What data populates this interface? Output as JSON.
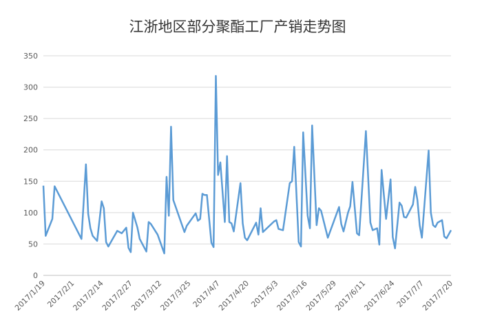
{
  "chart_data": {
    "type": "line",
    "title": "江浙地区部分聚酯工厂产销走势图",
    "color": "#5b9bd5",
    "grid": true,
    "ylim": [
      0,
      350
    ],
    "yticks": [
      0,
      50,
      100,
      150,
      200,
      250,
      300,
      350
    ],
    "xlim": [
      "2017/1/19",
      "2017/7/20"
    ],
    "xticks": [
      "2017/1/19",
      "2017/2/1",
      "2017/2/14",
      "2017/2/27",
      "2017/3/12",
      "2017/3/25",
      "2017/4/7",
      "2017/4/20",
      "2017/5/3",
      "2017/5/16",
      "2017/5/29",
      "2017/6/11",
      "2017/6/24",
      "2017/7/7",
      "2017/7/20"
    ],
    "x": [
      "2017/1/19",
      "2017/1/20",
      "2017/1/23",
      "2017/1/24",
      "2017/2/5",
      "2017/2/7",
      "2017/2/8",
      "2017/2/9",
      "2017/2/10",
      "2017/2/12",
      "2017/2/14",
      "2017/2/15",
      "2017/2/16",
      "2017/2/17",
      "2017/2/21",
      "2017/2/23",
      "2017/2/25",
      "2017/2/26",
      "2017/2/27",
      "2017/2/28",
      "2017/3/2",
      "2017/3/3",
      "2017/3/6",
      "2017/3/7",
      "2017/3/8",
      "2017/3/11",
      "2017/3/14",
      "2017/3/15",
      "2017/3/16",
      "2017/3/17",
      "2017/3/18",
      "2017/3/23",
      "2017/3/24",
      "2017/3/28",
      "2017/3/29",
      "2017/3/30",
      "2017/3/31",
      "2017/4/1",
      "2017/4/2",
      "2017/4/4",
      "2017/4/5",
      "2017/4/6",
      "2017/4/7",
      "2017/4/8",
      "2017/4/10",
      "2017/4/11",
      "2017/4/12",
      "2017/4/13",
      "2017/4/14",
      "2017/4/17",
      "2017/4/18",
      "2017/4/19",
      "2017/4/20",
      "2017/4/24",
      "2017/4/25",
      "2017/4/26",
      "2017/4/27",
      "2017/5/2",
      "2017/5/3",
      "2017/5/4",
      "2017/5/6",
      "2017/5/9",
      "2017/5/10",
      "2017/5/11",
      "2017/5/13",
      "2017/5/14",
      "2017/5/15",
      "2017/5/17",
      "2017/5/18",
      "2017/5/19",
      "2017/5/21",
      "2017/5/22",
      "2017/5/23",
      "2017/5/26",
      "2017/5/31",
      "2017/6/1",
      "2017/6/2",
      "2017/6/4",
      "2017/6/5",
      "2017/6/6",
      "2017/6/8",
      "2017/6/9",
      "2017/6/12",
      "2017/6/14",
      "2017/6/15",
      "2017/6/17",
      "2017/6/18",
      "2017/6/19",
      "2017/6/21",
      "2017/6/23",
      "2017/6/24",
      "2017/6/25",
      "2017/6/27",
      "2017/6/28",
      "2017/6/29",
      "2017/6/30",
      "2017/7/3",
      "2017/7/4",
      "2017/7/5",
      "2017/7/6",
      "2017/7/7",
      "2017/7/10",
      "2017/7/11",
      "2017/7/12",
      "2017/7/13",
      "2017/7/14",
      "2017/7/16",
      "2017/7/17",
      "2017/7/18",
      "2017/7/20"
    ],
    "values": [
      143,
      63,
      90,
      142,
      58,
      177,
      98,
      75,
      63,
      55,
      118,
      107,
      53,
      46,
      71,
      67,
      76,
      44,
      37,
      100,
      76,
      58,
      38,
      85,
      82,
      65,
      35,
      157,
      95,
      237,
      120,
      69,
      79,
      99,
      87,
      90,
      130,
      128,
      128,
      52,
      45,
      318,
      160,
      180,
      85,
      190,
      85,
      83,
      70,
      147,
      83,
      60,
      56,
      84,
      65,
      107,
      69,
      86,
      88,
      74,
      72,
      147,
      150,
      205,
      53,
      46,
      228,
      95,
      75,
      239,
      80,
      107,
      103,
      60,
      109,
      82,
      70,
      100,
      110,
      149,
      67,
      64,
      230,
      84,
      72,
      75,
      49,
      168,
      90,
      153,
      61,
      43,
      116,
      111,
      93,
      92,
      113,
      141,
      120,
      80,
      60,
      199,
      100,
      80,
      77,
      84,
      88,
      62,
      59,
      72
    ]
  }
}
